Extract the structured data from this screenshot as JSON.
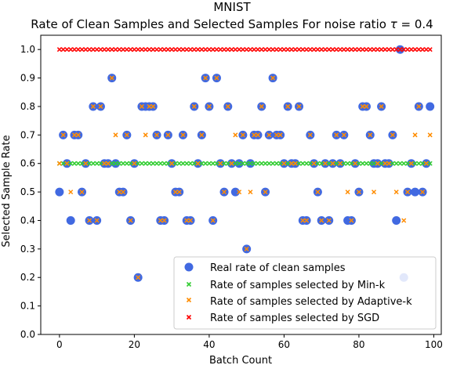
{
  "chart_data": {
    "type": "scatter",
    "title": "MNIST",
    "subtitle_prefix": "Rate of Clean Samples and Selected Samples For noise ratio ",
    "subtitle_symbol": "τ",
    "subtitle_suffix": " = 0.4",
    "xlabel": "Batch Count",
    "ylabel": "Selected Sample Rate",
    "xlim": [
      -5,
      102
    ],
    "ylim": [
      0.0,
      1.05
    ],
    "xticks": [
      "0",
      "20",
      "40",
      "60",
      "80",
      "100"
    ],
    "yticks": [
      "0.0",
      "0.1",
      "0.2",
      "0.3",
      "0.4",
      "0.5",
      "0.6",
      "0.7",
      "0.8",
      "0.9",
      "1.0"
    ],
    "legend_position": "bottom-right",
    "colors": {
      "real": "#4169E1",
      "mink": "#32CD32",
      "adaptive": "#FF8C00",
      "sgd": "#FF0000",
      "text": "#000000"
    },
    "series": [
      {
        "name": "Real rate of clean samples",
        "marker": "circle",
        "x": [
          0,
          1,
          2,
          3,
          4,
          5,
          6,
          7,
          8,
          9,
          10,
          11,
          12,
          13,
          14,
          15,
          16,
          17,
          18,
          19,
          20,
          21,
          22,
          23,
          24,
          25,
          26,
          27,
          28,
          29,
          30,
          31,
          32,
          33,
          34,
          35,
          36,
          37,
          38,
          39,
          40,
          41,
          42,
          43,
          44,
          45,
          46,
          47,
          48,
          49,
          50,
          51,
          52,
          53,
          54,
          55,
          56,
          57,
          58,
          59,
          60,
          61,
          62,
          63,
          64,
          65,
          66,
          67,
          68,
          69,
          70,
          71,
          72,
          73,
          74,
          75,
          76,
          77,
          78,
          79,
          80,
          81,
          82,
          83,
          84,
          85,
          86,
          87,
          88,
          89,
          90,
          91,
          92,
          93,
          94,
          95,
          96,
          97,
          98,
          99
        ],
        "y": [
          0.5,
          0.7,
          0.6,
          0.4,
          0.7,
          0.7,
          0.5,
          0.6,
          0.4,
          0.8,
          0.4,
          0.8,
          0.6,
          0.6,
          0.9,
          0.6,
          0.5,
          0.5,
          0.7,
          0.4,
          0.6,
          0.2,
          0.8,
          0.8,
          0.8,
          0.8,
          0.7,
          0.4,
          0.4,
          0.7,
          0.6,
          0.5,
          0.5,
          0.7,
          0.4,
          0.4,
          0.8,
          0.6,
          0.7,
          0.9,
          0.8,
          0.4,
          0.9,
          0.6,
          0.5,
          0.8,
          0.6,
          0.5,
          0.6,
          0.7,
          0.3,
          0.6,
          0.7,
          0.7,
          0.8,
          0.5,
          0.7,
          0.9,
          0.7,
          0.7,
          0.6,
          0.8,
          0.6,
          0.6,
          0.8,
          0.4,
          0.4,
          0.7,
          0.6,
          0.5,
          0.4,
          0.6,
          0.4,
          0.6,
          0.7,
          0.6,
          0.7,
          0.4,
          0.4,
          0.6,
          0.5,
          0.8,
          0.8,
          0.7,
          0.6,
          0.6,
          0.8,
          0.6,
          0.6,
          0.7,
          0.4,
          1.0,
          0.2,
          0.5,
          0.6,
          0.5,
          0.8,
          0.5,
          0.6,
          0.8
        ]
      },
      {
        "name": "Rate of samples selected by Min-k",
        "marker": "x",
        "x": [
          0,
          1,
          2,
          3,
          4,
          5,
          6,
          7,
          8,
          9,
          10,
          11,
          12,
          13,
          14,
          15,
          16,
          17,
          18,
          19,
          20,
          21,
          22,
          23,
          24,
          25,
          26,
          27,
          28,
          29,
          30,
          31,
          32,
          33,
          34,
          35,
          36,
          37,
          38,
          39,
          40,
          41,
          42,
          43,
          44,
          45,
          46,
          47,
          48,
          49,
          50,
          51,
          52,
          53,
          54,
          55,
          56,
          57,
          58,
          59,
          60,
          61,
          62,
          63,
          64,
          65,
          66,
          67,
          68,
          69,
          70,
          71,
          72,
          73,
          74,
          75,
          76,
          77,
          78,
          79,
          80,
          81,
          82,
          83,
          84,
          85,
          86,
          87,
          88,
          89,
          90,
          91,
          92,
          93,
          94,
          95,
          96,
          97,
          98,
          99
        ],
        "y": [
          0.6,
          0.6,
          0.6,
          0.6,
          0.6,
          0.6,
          0.6,
          0.6,
          0.6,
          0.6,
          0.6,
          0.6,
          0.6,
          0.6,
          0.6,
          0.6,
          0.6,
          0.6,
          0.6,
          0.6,
          0.6,
          0.6,
          0.6,
          0.6,
          0.6,
          0.6,
          0.6,
          0.6,
          0.6,
          0.6,
          0.6,
          0.6,
          0.6,
          0.6,
          0.6,
          0.6,
          0.6,
          0.6,
          0.6,
          0.6,
          0.6,
          0.6,
          0.6,
          0.6,
          0.6,
          0.6,
          0.6,
          0.6,
          0.6,
          0.6,
          0.6,
          0.6,
          0.6,
          0.6,
          0.6,
          0.6,
          0.6,
          0.6,
          0.6,
          0.6,
          0.6,
          0.6,
          0.6,
          0.6,
          0.6,
          0.6,
          0.6,
          0.6,
          0.6,
          0.6,
          0.6,
          0.6,
          0.6,
          0.6,
          0.6,
          0.6,
          0.6,
          0.6,
          0.6,
          0.6,
          0.6,
          0.6,
          0.6,
          0.6,
          0.6,
          0.6,
          0.6,
          0.6,
          0.6,
          0.6,
          0.6,
          0.6,
          0.6,
          0.6,
          0.6,
          0.6,
          0.6,
          0.6,
          0.6,
          0.6
        ]
      },
      {
        "name": "Rate of samples selected by Adaptive-k",
        "marker": "x",
        "x": [
          0,
          1,
          2,
          3,
          4,
          5,
          6,
          7,
          8,
          9,
          10,
          11,
          12,
          13,
          14,
          15,
          16,
          17,
          18,
          19,
          20,
          21,
          22,
          23,
          24,
          25,
          26,
          27,
          28,
          29,
          30,
          31,
          32,
          33,
          34,
          35,
          36,
          37,
          38,
          39,
          40,
          41,
          42,
          43,
          44,
          45,
          46,
          47,
          48,
          49,
          50,
          51,
          52,
          53,
          54,
          55,
          56,
          57,
          58,
          59,
          60,
          61,
          62,
          63,
          64,
          65,
          66,
          67,
          68,
          69,
          70,
          71,
          72,
          73,
          74,
          75,
          76,
          77,
          78,
          79,
          80,
          81,
          82,
          83,
          84,
          85,
          86,
          87,
          88,
          89,
          90,
          91,
          92,
          93,
          94,
          95,
          96,
          97,
          98,
          99
        ],
        "y": [
          0.6,
          0.7,
          0.6,
          0.5,
          0.7,
          0.7,
          0.5,
          0.6,
          0.4,
          0.8,
          0.4,
          0.8,
          0.6,
          0.6,
          0.9,
          0.7,
          0.5,
          0.5,
          0.7,
          0.4,
          0.6,
          0.2,
          0.8,
          0.7,
          0.8,
          0.8,
          0.7,
          0.4,
          0.4,
          0.7,
          0.6,
          0.5,
          0.5,
          0.7,
          0.4,
          0.4,
          0.8,
          0.6,
          0.7,
          0.9,
          0.8,
          0.4,
          0.9,
          0.6,
          0.5,
          0.8,
          0.6,
          0.7,
          0.5,
          0.7,
          0.3,
          0.5,
          0.7,
          0.7,
          0.8,
          0.5,
          0.7,
          0.9,
          0.7,
          0.7,
          0.6,
          0.8,
          0.6,
          0.6,
          0.8,
          0.4,
          0.4,
          0.7,
          0.6,
          0.5,
          0.4,
          0.6,
          0.4,
          0.6,
          0.7,
          0.6,
          0.7,
          0.5,
          0.4,
          0.6,
          0.5,
          0.8,
          0.8,
          0.7,
          0.5,
          0.6,
          0.8,
          0.6,
          0.6,
          0.7,
          0.5,
          1.0,
          0.4,
          0.5,
          0.6,
          0.7,
          0.8,
          0.5,
          0.6,
          0.7
        ]
      },
      {
        "name": "Rate of samples selected by SGD",
        "marker": "x",
        "x": [
          0,
          1,
          2,
          3,
          4,
          5,
          6,
          7,
          8,
          9,
          10,
          11,
          12,
          13,
          14,
          15,
          16,
          17,
          18,
          19,
          20,
          21,
          22,
          23,
          24,
          25,
          26,
          27,
          28,
          29,
          30,
          31,
          32,
          33,
          34,
          35,
          36,
          37,
          38,
          39,
          40,
          41,
          42,
          43,
          44,
          45,
          46,
          47,
          48,
          49,
          50,
          51,
          52,
          53,
          54,
          55,
          56,
          57,
          58,
          59,
          60,
          61,
          62,
          63,
          64,
          65,
          66,
          67,
          68,
          69,
          70,
          71,
          72,
          73,
          74,
          75,
          76,
          77,
          78,
          79,
          80,
          81,
          82,
          83,
          84,
          85,
          86,
          87,
          88,
          89,
          90,
          91,
          92,
          93,
          94,
          95,
          96,
          97,
          98,
          99
        ],
        "y": [
          1.0,
          1.0,
          1.0,
          1.0,
          1.0,
          1.0,
          1.0,
          1.0,
          1.0,
          1.0,
          1.0,
          1.0,
          1.0,
          1.0,
          1.0,
          1.0,
          1.0,
          1.0,
          1.0,
          1.0,
          1.0,
          1.0,
          1.0,
          1.0,
          1.0,
          1.0,
          1.0,
          1.0,
          1.0,
          1.0,
          1.0,
          1.0,
          1.0,
          1.0,
          1.0,
          1.0,
          1.0,
          1.0,
          1.0,
          1.0,
          1.0,
          1.0,
          1.0,
          1.0,
          1.0,
          1.0,
          1.0,
          1.0,
          1.0,
          1.0,
          1.0,
          1.0,
          1.0,
          1.0,
          1.0,
          1.0,
          1.0,
          1.0,
          1.0,
          1.0,
          1.0,
          1.0,
          1.0,
          1.0,
          1.0,
          1.0,
          1.0,
          1.0,
          1.0,
          1.0,
          1.0,
          1.0,
          1.0,
          1.0,
          1.0,
          1.0,
          1.0,
          1.0,
          1.0,
          1.0,
          1.0,
          1.0,
          1.0,
          1.0,
          1.0,
          1.0,
          1.0,
          1.0,
          1.0,
          1.0,
          1.0,
          1.0,
          1.0,
          1.0,
          1.0,
          1.0,
          1.0,
          1.0,
          1.0,
          1.0
        ]
      }
    ]
  }
}
